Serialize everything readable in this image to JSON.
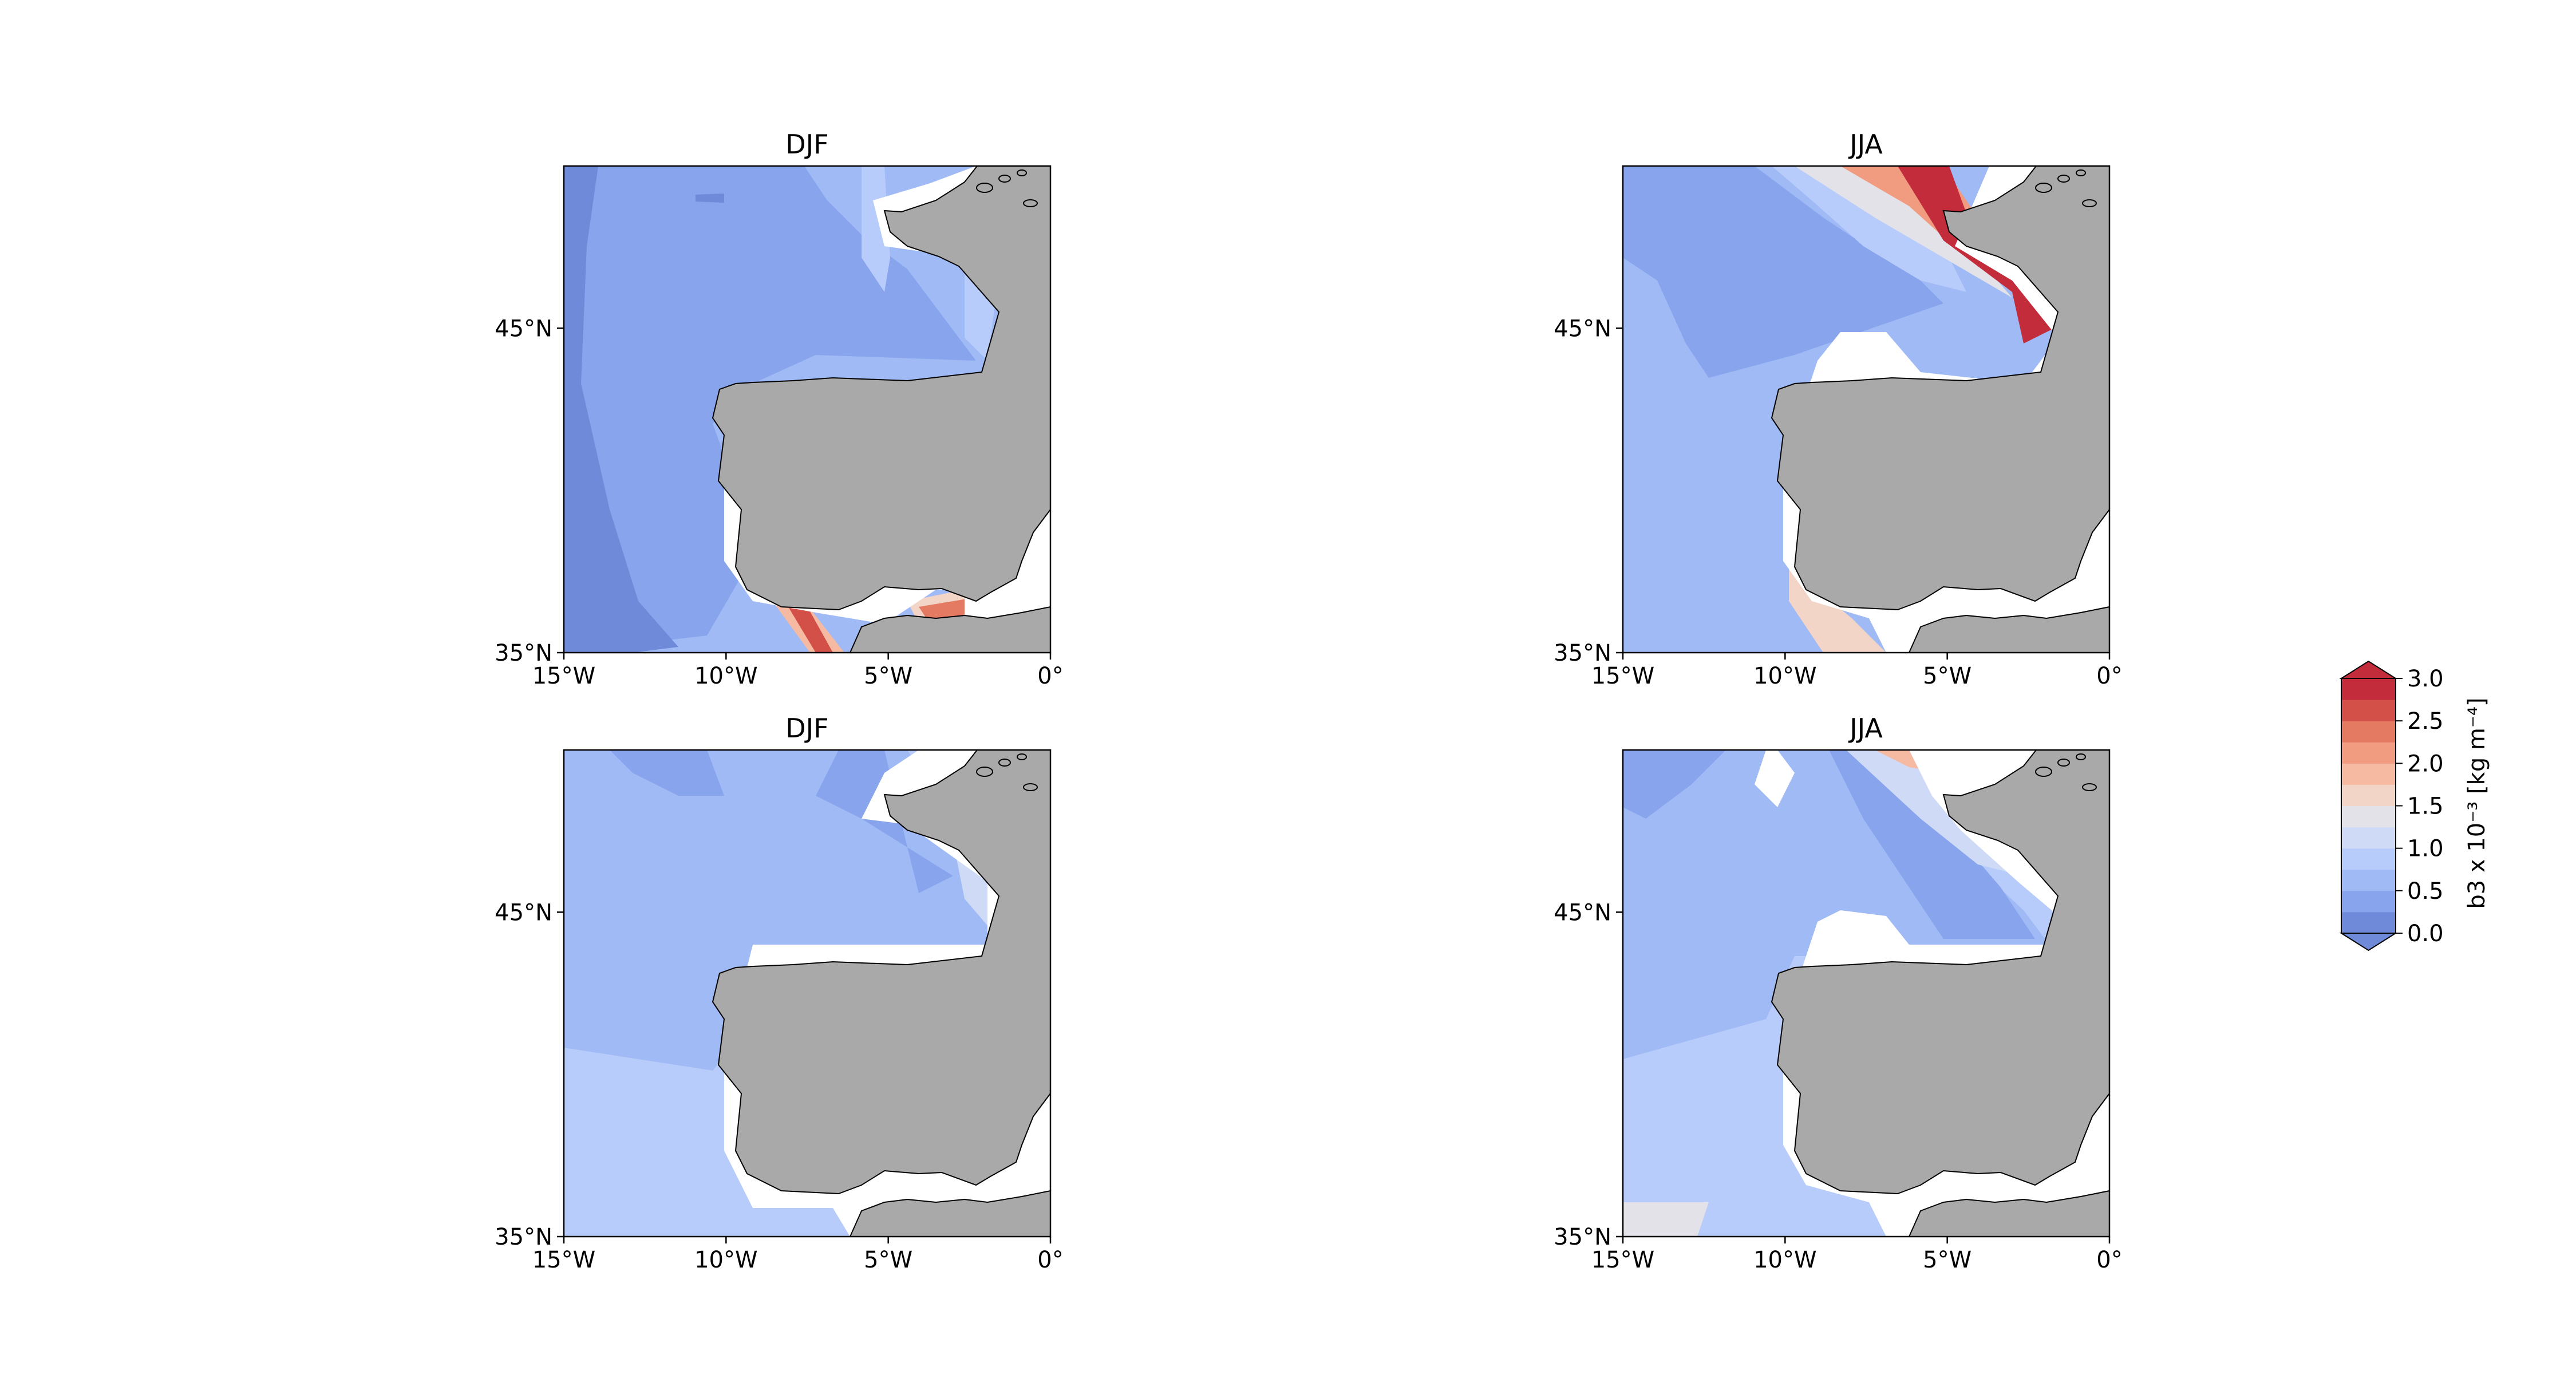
{
  "figure": {
    "panels": [
      {
        "title": "DJF",
        "id": "p1"
      },
      {
        "title": "JJA",
        "id": "p2"
      },
      {
        "title": "DJF",
        "id": "p3"
      },
      {
        "title": "JJA",
        "id": "p4"
      }
    ],
    "x_ticks": [
      "15°W",
      "10°W",
      "5°W",
      "0°"
    ],
    "y_ticks": [
      "45°N",
      "35°N"
    ],
    "colorbar": {
      "label": "b3 x 10⁻³ [kg m⁻⁴]",
      "ticks": [
        "3.0",
        "2.5",
        "2.0",
        "1.5",
        "1.0",
        "0.5",
        "0.0"
      ],
      "levels": [
        0.0,
        0.25,
        0.5,
        0.75,
        1.0,
        1.25,
        1.5,
        1.75,
        2.0,
        2.25,
        2.5,
        2.75,
        3.0
      ],
      "colors": [
        "#6f8ad9",
        "#88a4ed",
        "#a0baf6",
        "#b8ccfb",
        "#cfdbf6",
        "#e2e2e8",
        "#f2d5c7",
        "#f6b9a1",
        "#f19b80",
        "#e57a63",
        "#d35048",
        "#c32c3b"
      ],
      "extend": "both"
    },
    "land_color": "#a9a9a9",
    "mask_color": "#ffffff",
    "extent": {
      "lon": [
        -15,
        0
      ],
      "lat": [
        35,
        50
      ]
    }
  }
}
